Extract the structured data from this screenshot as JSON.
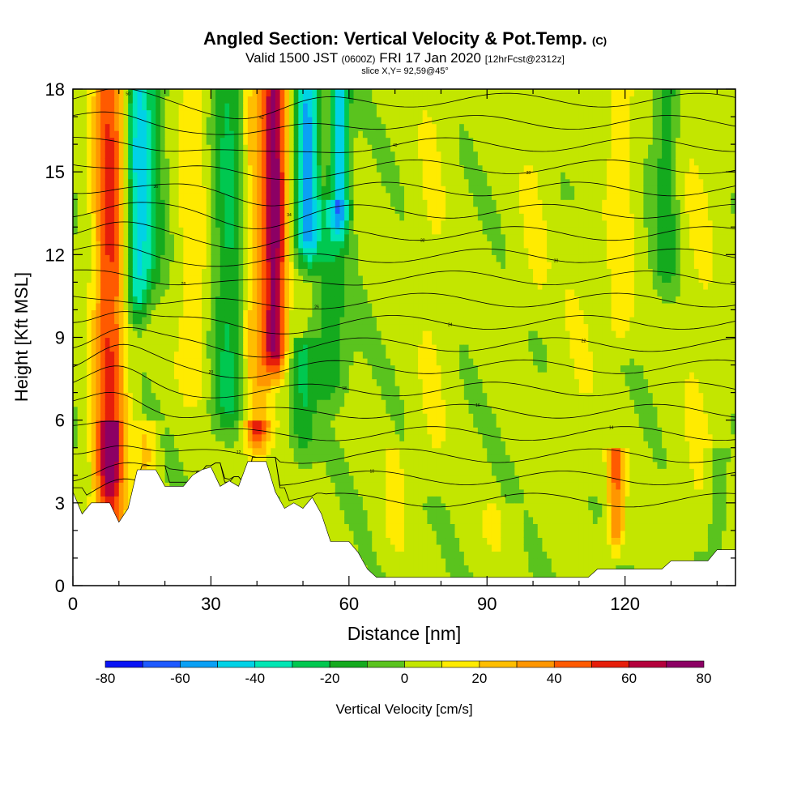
{
  "title": {
    "main": "Angled Section: Vertical Velocity & Pot.Temp.",
    "main_suffix": "(C)",
    "valid_prefix": "Valid 1500 JST",
    "valid_z": "(0600Z)",
    "valid_date": "FRI 17 Jan 2020",
    "valid_fcst": "[12hrFcst@2312z]",
    "slice": "slice X,Y= 92,59@45°"
  },
  "chart_data": {
    "type": "heatmap",
    "xlabel": "Distance [nm]",
    "ylabel": "Height [Kft MSL]",
    "xlim": [
      0,
      144
    ],
    "ylim": [
      0,
      18
    ],
    "xticks": [
      0,
      30,
      60,
      90,
      120
    ],
    "yticks": [
      0,
      3,
      6,
      9,
      12,
      15,
      18
    ],
    "colorbar": {
      "label": "Vertical Velocity [cm/s]",
      "ticks": [
        -80,
        -60,
        -40,
        -20,
        0,
        20,
        40,
        60,
        80
      ],
      "bins": [
        -80,
        -70,
        -60,
        -50,
        -40,
        -30,
        -20,
        -10,
        0,
        10,
        20,
        30,
        40,
        50,
        60,
        70,
        80
      ],
      "colors": [
        "#0a14f5",
        "#1e5aff",
        "#0aa0f5",
        "#00d2e6",
        "#00e6b4",
        "#00c850",
        "#14aa1e",
        "#5ac31e",
        "#c3e600",
        "#ffeb00",
        "#ffbe00",
        "#ff9600",
        "#ff5a00",
        "#e61e0a",
        "#b4003c",
        "#8c0064"
      ]
    },
    "terrain": [
      [
        0,
        3.4
      ],
      [
        2,
        2.6
      ],
      [
        4,
        3.0
      ],
      [
        8,
        3.0
      ],
      [
        10,
        2.3
      ],
      [
        12,
        2.8
      ],
      [
        14,
        4.2
      ],
      [
        18,
        4.2
      ],
      [
        20,
        3.6
      ],
      [
        24,
        3.6
      ],
      [
        26,
        4.0
      ],
      [
        28,
        4.2
      ],
      [
        30,
        4.3
      ],
      [
        32,
        3.6
      ],
      [
        34,
        3.8
      ],
      [
        36,
        3.6
      ],
      [
        38,
        4.5
      ],
      [
        42,
        4.5
      ],
      [
        44,
        3.4
      ],
      [
        46,
        2.8
      ],
      [
        48,
        3.0
      ],
      [
        50,
        2.8
      ],
      [
        52,
        3.2
      ],
      [
        54,
        2.6
      ],
      [
        56,
        1.6
      ],
      [
        60,
        1.6
      ],
      [
        62,
        1.2
      ],
      [
        64,
        0.6
      ],
      [
        66,
        0.3
      ],
      [
        112,
        0.3
      ],
      [
        114,
        0.6
      ],
      [
        128,
        0.6
      ],
      [
        130,
        0.9
      ],
      [
        138,
        0.9
      ],
      [
        140,
        1.3
      ],
      [
        144,
        1.3
      ]
    ],
    "features": [
      {
        "x": 8,
        "w": 3.5,
        "base": 0,
        "top": 18,
        "value": 50
      },
      {
        "x": 14,
        "w": 2.5,
        "base": 9,
        "top": 18,
        "value": -40
      },
      {
        "x": 17,
        "w": 3,
        "base": 10,
        "top": 18,
        "value": -20
      },
      {
        "x": 26,
        "w": 3.5,
        "base": 6,
        "top": 18,
        "value": 15
      },
      {
        "x": 34,
        "w": 3.5,
        "base": 5,
        "top": 18,
        "value": -25
      },
      {
        "x": 40,
        "w": 3.5,
        "base": 4.5,
        "top": 18,
        "value": 25
      },
      {
        "x": 44,
        "w": 2.5,
        "base": 7,
        "top": 18,
        "value": 65
      },
      {
        "x": 51,
        "w": 2.5,
        "base": 11,
        "top": 18,
        "value": -55
      },
      {
        "x": 58,
        "w": 2,
        "base": 12,
        "top": 18,
        "value": -50
      },
      {
        "x": 56,
        "w": 3.5,
        "base": 6,
        "top": 14,
        "value": -20
      },
      {
        "x": 50,
        "w": 2.5,
        "base": 4,
        "top": 9,
        "value": -20
      },
      {
        "x": 8,
        "w": 2.5,
        "base": 2.8,
        "top": 6,
        "value": 35
      },
      {
        "x": 16,
        "w": 2,
        "base": 3,
        "top": 6,
        "value": 20
      },
      {
        "x": 40,
        "w": 2.5,
        "base": 4,
        "top": 6,
        "value": 35
      },
      {
        "x": 118,
        "w": 1.8,
        "base": 0.6,
        "top": 5,
        "value": 40
      },
      {
        "x": 119,
        "w": 3,
        "base": 8,
        "top": 18,
        "value": 15
      },
      {
        "x": 129,
        "w": 2.5,
        "base": 10,
        "top": 18,
        "value": -20
      },
      {
        "x": 100,
        "w": 4,
        "base": 9,
        "top": 18,
        "value": 8
      },
      {
        "x": 78,
        "w": 4,
        "base": 3,
        "top": 18,
        "value": 8
      },
      {
        "x": 110,
        "w": 5,
        "base": 3,
        "top": 14,
        "value": 7
      },
      {
        "x": 136,
        "w": 5,
        "base": 1,
        "top": 18,
        "value": 8
      },
      {
        "x": 92,
        "w": 4,
        "base": 0.3,
        "top": 3,
        "value": 8
      },
      {
        "x": 70,
        "w": 3,
        "base": 0.3,
        "top": 5,
        "value": 10
      },
      {
        "x": 140,
        "w": 2,
        "base": 1,
        "top": 5,
        "value": -15
      }
    ],
    "theta_labels": [
      "50",
      "42",
      "40",
      "38",
      "36",
      "34",
      "32",
      "30",
      "28",
      "26",
      "24",
      "22",
      "20",
      "18",
      "16",
      "14",
      "12",
      "10",
      "8"
    ]
  }
}
